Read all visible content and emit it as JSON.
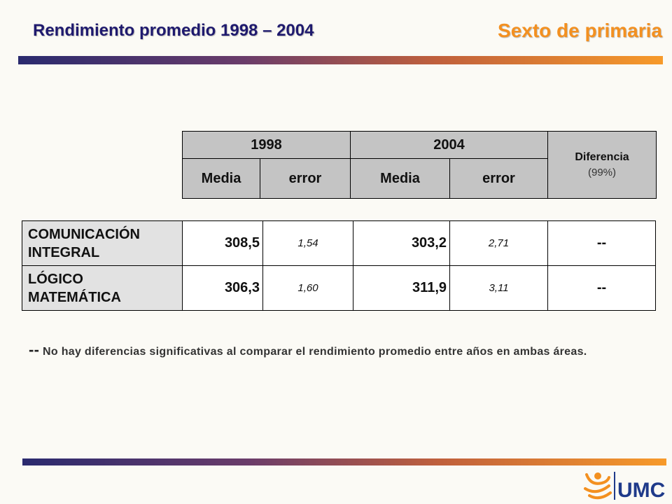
{
  "header": {
    "title": "Rendimiento promedio 1998 – 2004",
    "subtitle": "Sexto de primaria"
  },
  "table": {
    "years": [
      "1998",
      "2004"
    ],
    "sub_headers": [
      "Media",
      "error",
      "Media",
      "error"
    ],
    "diff_label": "Diferencia",
    "diff_pct": "(99%)",
    "rows": [
      {
        "area_line1": "COMUNICACIÓN",
        "area_line2": "INTEGRAL",
        "mean_1998": "308,5",
        "error_1998": "1,54",
        "mean_2004": "303,2",
        "error_2004": "2,71",
        "diff": "--"
      },
      {
        "area_line1": "LÓGICO",
        "area_line2": "MATEMÁTICA",
        "mean_1998": "306,3",
        "error_1998": "1,60",
        "mean_2004": "311,9",
        "error_2004": "3,11",
        "diff": "--"
      }
    ]
  },
  "note": {
    "marker": "--",
    "text": "No hay diferencias significativas al comparar el rendimiento promedio entre años en ambas áreas."
  },
  "logo": {
    "text": "UMC"
  },
  "colors": {
    "title": "#1f1a6e",
    "subtitle": "#f39020",
    "logo_blue": "#1f3a8a",
    "logo_orange": "#f39020"
  }
}
